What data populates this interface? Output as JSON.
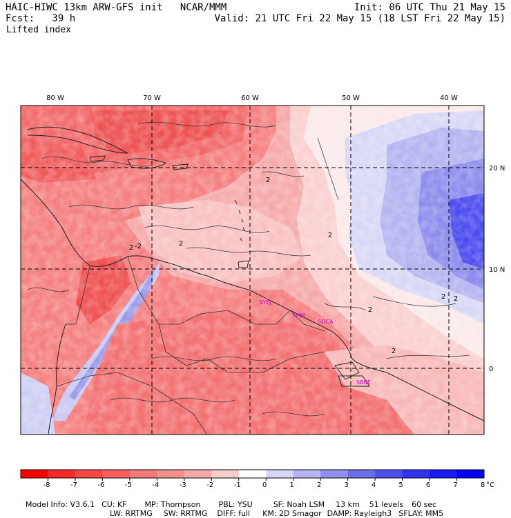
{
  "header": {
    "model_line": "HAIC-HIWC 13km ARW-GFS init   NCAR/MMM",
    "fcst_line": "Fcst:   39 h",
    "field": "Lifted index",
    "init_line": "Init: 06 UTC Thu 21 May 15",
    "valid_line": "Valid: 21 UTC Fri 22 May 15 (18 LST Fri 22 May 15)"
  },
  "map": {
    "lon_labels": [
      "80 W",
      "70 W",
      "60 W",
      "50 W",
      "40 W"
    ],
    "lat_labels": [
      "20 N",
      "10 N",
      "0"
    ],
    "cities": [
      "SYEJ",
      "SMJP",
      "SOCA",
      "SBBE"
    ],
    "contour_labels": [
      "2",
      "2",
      "2",
      "2",
      "-2",
      "2",
      "2",
      "2",
      "2"
    ]
  },
  "colorbar": {
    "unit": "°C",
    "ticks": [
      "-8",
      "-7",
      "-6",
      "-5",
      "-4",
      "-3",
      "-2",
      "-1",
      "0",
      "1",
      "2",
      "3",
      "4",
      "5",
      "6",
      "7",
      "8"
    ],
    "colors": [
      "#ff0000",
      "#fd2a2a",
      "#fb4646",
      "#f86060",
      "#f57878",
      "#f39090",
      "#f3aaaa",
      "#f7cccc",
      "#ffffff",
      "#d6d6f6",
      "#b4b4f0",
      "#9090ec",
      "#6e6ee8",
      "#5050ee",
      "#3232f2",
      "#1818f8",
      "#0000ff"
    ]
  },
  "footer": {
    "line1": [
      "Model Info: V3.6.1",
      "CU: KF",
      "MP: Thompson",
      "PBL: YSU",
      "SF: Noah LSM",
      "13 km",
      "51 levels",
      "60 sec"
    ],
    "line2": [
      "LW: RRTMG",
      "SW: RRTMG",
      "DIFF: full",
      "KM: 2D Smagor",
      "DAMP: Rayleigh3",
      "SFLAY: MM5"
    ]
  }
}
